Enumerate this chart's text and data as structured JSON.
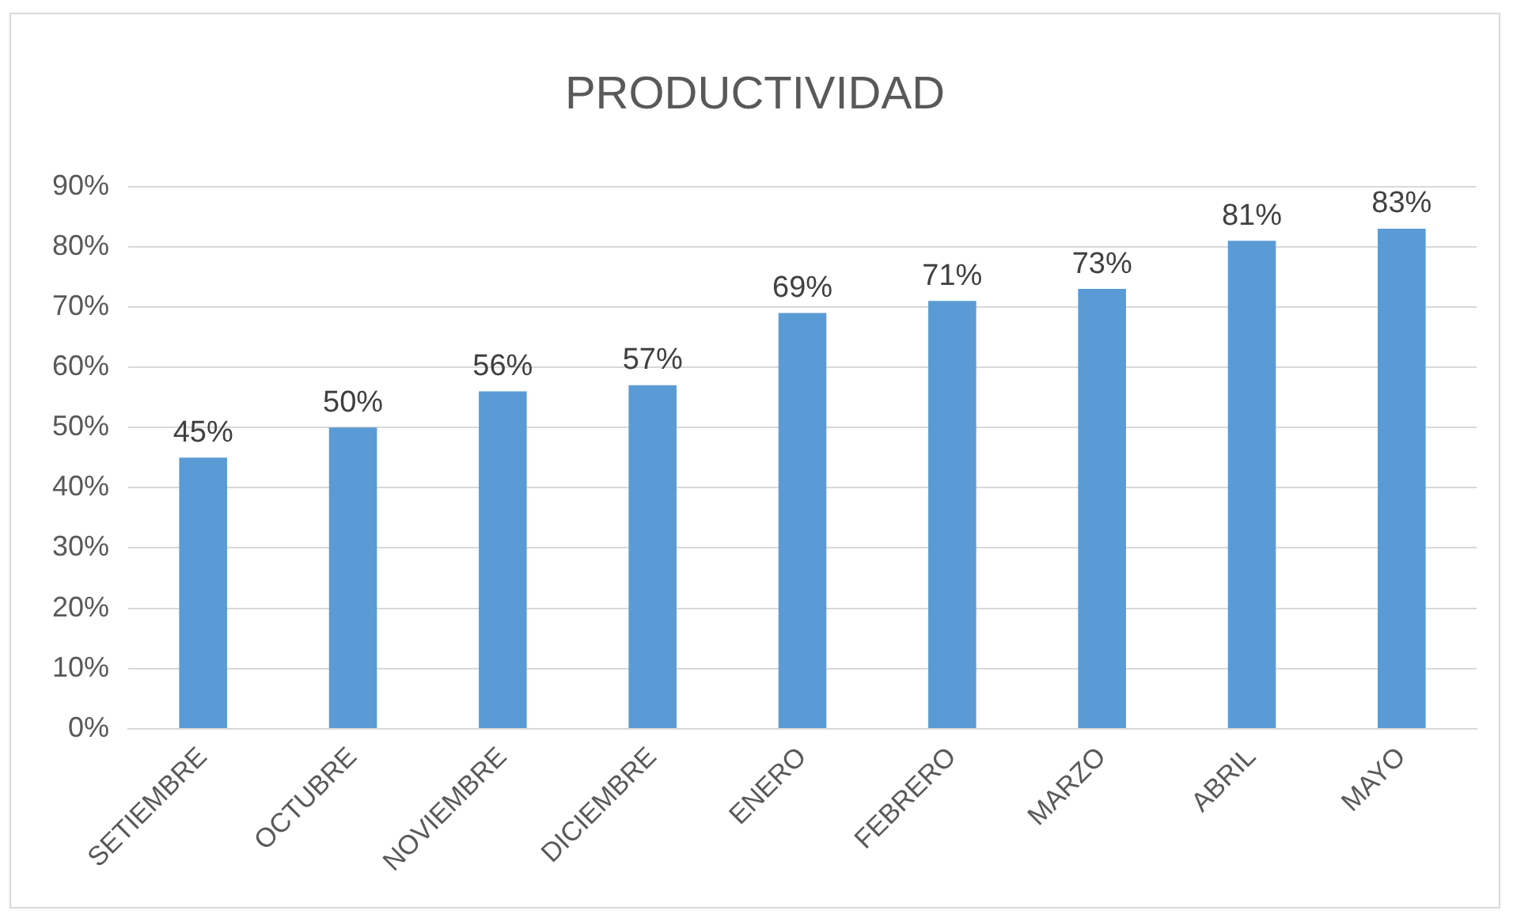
{
  "chart_data": {
    "type": "bar",
    "title": "PRODUCTIVIDAD",
    "categories": [
      "SETIEMBRE",
      "OCTUBRE",
      "NOVIEMBRE",
      "DICIEMBRE",
      "ENERO",
      "FEBRERO",
      "MARZO",
      "ABRIL",
      "MAYO"
    ],
    "values": [
      45,
      50,
      56,
      57,
      69,
      71,
      73,
      81,
      83
    ],
    "value_labels": [
      "45%",
      "50%",
      "56%",
      "57%",
      "69%",
      "71%",
      "73%",
      "81%",
      "83%"
    ],
    "color": "#5b9bd5",
    "ylim": [
      0,
      90
    ],
    "yticks": [
      {
        "value": 0,
        "label": "0%"
      },
      {
        "value": 10,
        "label": "10%"
      },
      {
        "value": 20,
        "label": "20%"
      },
      {
        "value": 30,
        "label": "30%"
      },
      {
        "value": 40,
        "label": "40%"
      },
      {
        "value": 50,
        "label": "50%"
      },
      {
        "value": 60,
        "label": "60%"
      },
      {
        "value": 70,
        "label": "70%"
      },
      {
        "value": 80,
        "label": "80%"
      },
      {
        "value": 90,
        "label": "90%"
      }
    ],
    "grid": "y"
  }
}
